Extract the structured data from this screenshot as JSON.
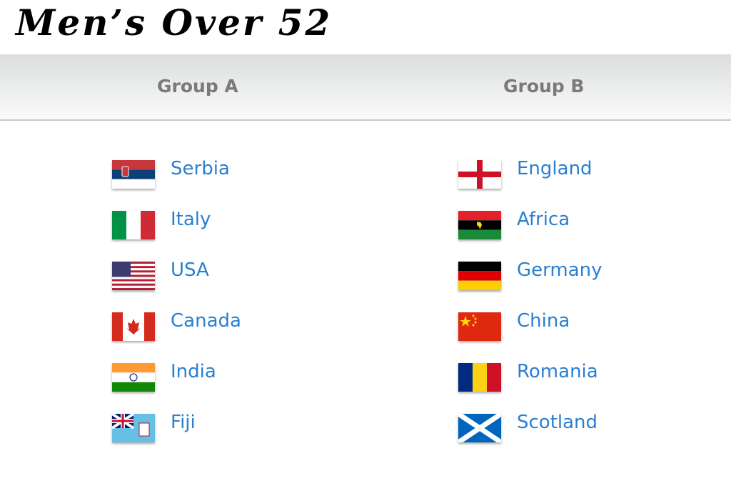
{
  "title": "Men’s Over 52",
  "groups": [
    {
      "label": "Group A",
      "teams": [
        {
          "name": "Serbia",
          "flag": "serbia-flag"
        },
        {
          "name": "Italy",
          "flag": "italy-flag"
        },
        {
          "name": "USA",
          "flag": "usa-flag"
        },
        {
          "name": "Canada",
          "flag": "canada-flag"
        },
        {
          "name": "India",
          "flag": "india-flag"
        },
        {
          "name": "Fiji",
          "flag": "fiji-flag"
        }
      ]
    },
    {
      "label": "Group B",
      "teams": [
        {
          "name": "England",
          "flag": "england-flag"
        },
        {
          "name": "Africa",
          "flag": "biafra-flag"
        },
        {
          "name": "Germany",
          "flag": "germany-flag"
        },
        {
          "name": "China",
          "flag": "china-flag"
        },
        {
          "name": "Romania",
          "flag": "romania-flag"
        },
        {
          "name": "Scotland",
          "flag": "scotland-flag"
        }
      ]
    }
  ],
  "colors": {
    "link": "#2a7fd0",
    "header_text": "#7a7a7a"
  }
}
